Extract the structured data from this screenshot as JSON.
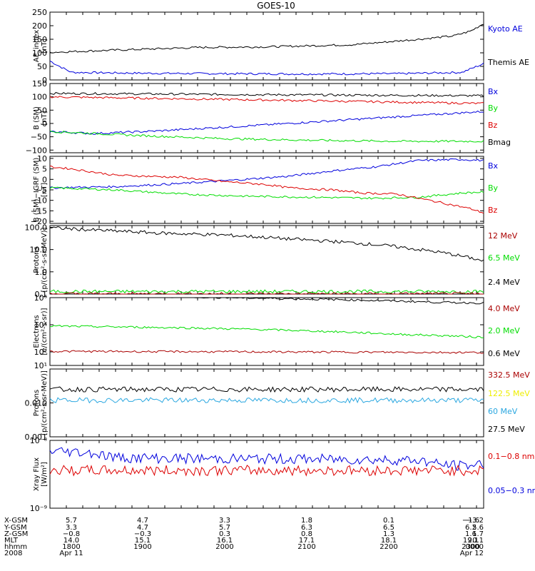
{
  "title": "GOES-10",
  "colors": {
    "black": "#000000",
    "blue": "#0000dd",
    "red": "#dd0000",
    "green": "#00dd00",
    "darkred": "#aa0000",
    "yellow": "#eeee00",
    "cyan": "#2aa7e0"
  },
  "chart_data": [
    {
      "type": "line",
      "ylabel": [
        "AE_index",
        "[nT]"
      ],
      "yscale": "linear",
      "ylim": [
        0,
        250
      ],
      "yticks": [
        "0",
        "50",
        "100",
        "150",
        "200",
        "250"
      ],
      "series": [
        {
          "name": "Kyoto AE",
          "color": "blue",
          "points": [
            [
              0,
              70
            ],
            [
              0.02,
              52
            ],
            [
              0.05,
              28
            ],
            [
              0.2,
              25
            ],
            [
              0.4,
              23
            ],
            [
              0.6,
              22
            ],
            [
              0.8,
              23
            ],
            [
              0.95,
              28
            ],
            [
              1,
              60
            ]
          ]
        },
        {
          "name": "Themis AE",
          "color": "black",
          "points": [
            [
              0,
              102
            ],
            [
              0.15,
              110
            ],
            [
              0.35,
              120
            ],
            [
              0.5,
              122
            ],
            [
              0.7,
              130
            ],
            [
              0.85,
              150
            ],
            [
              0.93,
              162
            ],
            [
              0.97,
              180
            ],
            [
              1,
              208
            ]
          ]
        }
      ],
      "legend": [
        {
          "label": "Kyoto AE",
          "color": "blue"
        },
        {
          "label": "Themis AE",
          "color": "black"
        }
      ]
    },
    {
      "type": "line",
      "ylabel": [
        "B (SM)",
        "[nT]"
      ],
      "yscale": "linear",
      "ylim": [
        -110,
        150
      ],
      "yticks": [
        "−100",
        "−50",
        "0",
        "50",
        "100",
        "150"
      ],
      "series": [
        {
          "name": "Bmag",
          "color": "black",
          "points": [
            [
              0,
              113
            ],
            [
              0.5,
              108
            ],
            [
              1,
              104
            ]
          ]
        },
        {
          "name": "Bz",
          "color": "red",
          "points": [
            [
              0,
              100
            ],
            [
              0.5,
              88
            ],
            [
              1,
              75
            ]
          ]
        },
        {
          "name": "Bx",
          "color": "blue",
          "points": [
            [
              0,
              -30
            ],
            [
              0.1,
              -38
            ],
            [
              0.25,
              -28
            ],
            [
              0.5,
              -5
            ],
            [
              0.75,
              20
            ],
            [
              1,
              45
            ]
          ]
        },
        {
          "name": "By",
          "color": "green",
          "points": [
            [
              0,
              -30
            ],
            [
              0.2,
              -45
            ],
            [
              0.4,
              -57
            ],
            [
              0.6,
              -63
            ],
            [
              0.8,
              -67
            ],
            [
              1,
              -67
            ]
          ]
        }
      ],
      "legend": [
        {
          "label": "Bx",
          "color": "blue"
        },
        {
          "label": "By",
          "color": "green"
        },
        {
          "label": "Bz",
          "color": "red"
        },
        {
          "label": "Bmag",
          "color": "black"
        }
      ]
    },
    {
      "type": "line",
      "ylabel": [
        "B (SM)−IGRF (SM)",
        "[nT]"
      ],
      "yscale": "linear",
      "ylim": [
        -21,
        11
      ],
      "yticks": [
        "−20",
        "−15",
        "−10",
        "−5",
        "0",
        "5",
        "10"
      ],
      "series": [
        {
          "name": "Bx",
          "color": "blue",
          "points": [
            [
              0,
              -4
            ],
            [
              0.15,
              -3.5
            ],
            [
              0.3,
              -2
            ],
            [
              0.45,
              0
            ],
            [
              0.55,
              1.5
            ],
            [
              0.65,
              4
            ],
            [
              0.75,
              6
            ],
            [
              0.85,
              9
            ],
            [
              0.95,
              9.5
            ],
            [
              1,
              9
            ]
          ]
        },
        {
          "name": "By",
          "color": "green",
          "points": [
            [
              0,
              -4
            ],
            [
              0.15,
              -5
            ],
            [
              0.3,
              -7
            ],
            [
              0.45,
              -8
            ],
            [
              0.6,
              -8.5
            ],
            [
              0.75,
              -9
            ],
            [
              0.85,
              -8.5
            ],
            [
              0.95,
              -6.5
            ],
            [
              1,
              -6
            ]
          ]
        },
        {
          "name": "Bz",
          "color": "red",
          "points": [
            [
              0,
              6
            ],
            [
              0.05,
              5
            ],
            [
              0.15,
              2
            ],
            [
              0.3,
              1
            ],
            [
              0.4,
              -1
            ],
            [
              0.5,
              -2.5
            ],
            [
              0.55,
              -4
            ],
            [
              0.65,
              -5
            ],
            [
              0.72,
              -6.5
            ],
            [
              0.8,
              -7
            ],
            [
              0.9,
              -11
            ],
            [
              0.97,
              -14
            ],
            [
              1,
              -16
            ]
          ]
        }
      ],
      "legend": [
        {
          "label": "Bx",
          "color": "blue"
        },
        {
          "label": "By",
          "color": "green"
        },
        {
          "label": "Bz",
          "color": "red"
        }
      ]
    },
    {
      "type": "line",
      "ylabel": [
        "Protons",
        "[p/(cm²-s-sr-MeV)]"
      ],
      "yscale": "log",
      "ylim": [
        0.1,
        120
      ],
      "yticks": [
        "0.1",
        "1.0",
        "10.0",
        "100.0"
      ],
      "series": [
        {
          "name": "2.4 MeV",
          "color": "black",
          "points": [
            [
              0,
              95
            ],
            [
              0.1,
              75
            ],
            [
              0.25,
              55
            ],
            [
              0.4,
              45
            ],
            [
              0.55,
              30
            ],
            [
              0.7,
              20
            ],
            [
              0.85,
              10
            ],
            [
              0.95,
              5
            ],
            [
              1,
              3
            ]
          ]
        },
        {
          "name": "6.5 MeV",
          "color": "green",
          "points": [
            [
              0,
              0.13
            ],
            [
              0.5,
              0.13
            ],
            [
              1,
              0.13
            ]
          ]
        },
        {
          "name": "12 MeV",
          "color": "darkred",
          "points": [
            [
              0,
              0.1
            ],
            [
              1,
              0.1
            ]
          ]
        }
      ],
      "legend": [
        {
          "label": "12 MeV",
          "color": "darkred"
        },
        {
          "label": "6.5 MeV",
          "color": "green"
        },
        {
          "label": "2.4 MeV",
          "color": "black"
        }
      ]
    },
    {
      "type": "line",
      "ylabel": [
        "Electrons",
        "[e/(cm²-s-sr)]"
      ],
      "yscale": "log",
      "ylim": [
        10,
        1000000
      ],
      "yticks": [
        "10¹",
        "10²",
        "10⁴",
        "10⁶"
      ],
      "series": [
        {
          "name": "0.6 MeV",
          "color": "black",
          "points": [
            [
              0,
              1500000
            ],
            [
              0.5,
              900000
            ],
            [
              0.9,
              450000
            ],
            [
              1,
              400000
            ]
          ]
        },
        {
          "name": "2.0 MeV",
          "color": "green",
          "points": [
            [
              0,
              8000
            ],
            [
              0.3,
              6000
            ],
            [
              0.6,
              3500
            ],
            [
              0.8,
              2000
            ],
            [
              1,
              1200
            ]
          ]
        },
        {
          "name": "4.0 MeV",
          "color": "darkred",
          "points": [
            [
              0,
              110
            ],
            [
              0.5,
              100
            ],
            [
              1,
              90
            ]
          ]
        }
      ],
      "legend": [
        {
          "label": "4.0 MeV",
          "color": "darkred"
        },
        {
          "label": "2.0 MeV",
          "color": "green"
        },
        {
          "label": "0.6 MeV",
          "color": "black"
        }
      ]
    },
    {
      "type": "line",
      "ylabel": [
        "Protons",
        "[p/(cm²-s-sr-MeV)]"
      ],
      "yscale": "log",
      "ylim": [
        0.001,
        0.1
      ],
      "yticks": [
        "0.001",
        "0.010"
      ],
      "series": [
        {
          "name": "27.5 MeV",
          "color": "black",
          "points": [
            [
              0,
              0.025
            ],
            [
              1,
              0.025
            ]
          ]
        },
        {
          "name": "60 MeV",
          "color": "cyan",
          "points": [
            [
              0,
              0.012
            ],
            [
              1,
              0.012
            ]
          ]
        }
      ],
      "legend": [
        {
          "label": "332.5 MeV",
          "color": "darkred"
        },
        {
          "label": "122.5 MeV",
          "color": "yellow"
        },
        {
          "label": "60 MeV",
          "color": "cyan"
        },
        {
          "label": "27.5 MeV",
          "color": "black"
        }
      ]
    },
    {
      "type": "line",
      "ylabel": [
        "Xray Flux",
        "[W/m²]"
      ],
      "yscale": "log",
      "ylim": [
        1e-09,
        1e-08
      ],
      "yticks": [
        "10⁻⁹",
        "10⁻⁸"
      ],
      "series": [
        {
          "name": "0.05–0.3 nm",
          "color": "blue",
          "points": [
            [
              0,
              7e-09
            ],
            [
              0.05,
              6.8e-09
            ],
            [
              0.1,
              6.5e-09
            ],
            [
              0.15,
              5.6e-09
            ],
            [
              0.3,
              5.4e-09
            ],
            [
              0.6,
              5.3e-09
            ],
            [
              0.85,
              5.1e-09
            ],
            [
              0.9,
              4.4e-09
            ],
            [
              0.95,
              4.2e-09
            ],
            [
              1,
              4.5e-09
            ]
          ]
        },
        {
          "name": "0.1–0.8 nm",
          "color": "red",
          "points": [
            [
              0,
              3.6e-09
            ],
            [
              1,
              3.6e-09
            ]
          ]
        }
      ],
      "legend": [
        {
          "label": "0.1−0.8 nm",
          "color": "red"
        },
        {
          "label": "0.05−0.3 nm",
          "color": "blue"
        }
      ]
    }
  ],
  "xaxis": {
    "rows": [
      {
        "label": "X-GSM",
        "values": [
          "5.7",
          "4.7",
          "3.3",
          "1.8",
          "0.1",
          "−1.6",
          "−3.2"
        ]
      },
      {
        "label": "Y-GSM",
        "values": [
          "3.3",
          "4.7",
          "5.7",
          "6.3",
          "6.5",
          "6.2",
          "5.6"
        ]
      },
      {
        "label": "Z-GSM",
        "values": [
          "−0.8",
          "−0.3",
          "0.3",
          "0.8",
          "1.3",
          "1.6",
          "1.7"
        ]
      },
      {
        "label": "MLT",
        "values": [
          "14.0",
          "15.1",
          "16.1",
          "17.1",
          "18.1",
          "19.1",
          "20.1"
        ]
      },
      {
        "label": "hhmm",
        "values": [
          "1800",
          "1900",
          "2000",
          "2100",
          "2200",
          "2300",
          "0000"
        ]
      },
      {
        "label": "2008",
        "values": [
          "Apr 11",
          "",
          "",
          "",
          "",
          "",
          "Apr 12"
        ]
      }
    ]
  }
}
